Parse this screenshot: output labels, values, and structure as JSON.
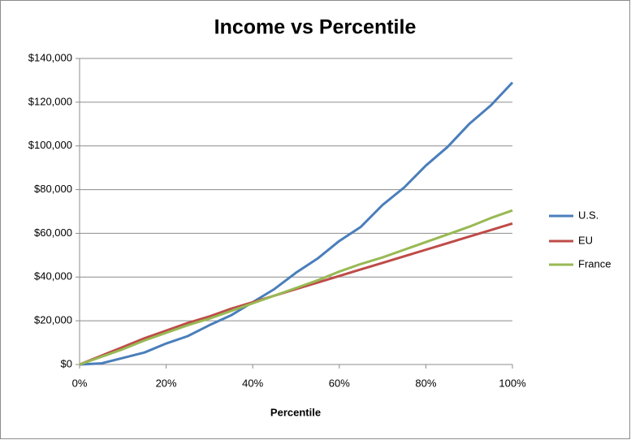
{
  "chart_data": {
    "type": "line",
    "title": "Income vs Percentile",
    "xlabel": "Percentile",
    "x": [
      0,
      5,
      10,
      15,
      20,
      25,
      30,
      35,
      40,
      45,
      50,
      55,
      60,
      65,
      70,
      75,
      80,
      85,
      90,
      95,
      100
    ],
    "series": [
      {
        "name": "U.S.",
        "color": "#4a7ebb",
        "values": [
          0,
          500,
          3000,
          5500,
          9600,
          13000,
          18000,
          22500,
          28500,
          34500,
          42000,
          48500,
          56500,
          63000,
          73000,
          81000,
          91000,
          99500,
          110000,
          118500,
          129000
        ]
      },
      {
        "name": "EU",
        "color": "#be4b48",
        "values": [
          0,
          4000,
          8000,
          12000,
          15500,
          19000,
          22000,
          25500,
          28500,
          31500,
          34500,
          37500,
          40500,
          43500,
          46500,
          49500,
          52500,
          55500,
          58500,
          61500,
          64500
        ]
      },
      {
        "name": "France",
        "color": "#98b954",
        "values": [
          0,
          3500,
          7000,
          11000,
          14500,
          18000,
          21000,
          24500,
          28000,
          31500,
          35000,
          38500,
          42500,
          46000,
          49000,
          52500,
          56000,
          59500,
          63000,
          67000,
          70500
        ]
      }
    ],
    "xlim": [
      0,
      100
    ],
    "xticks": [
      {
        "value": 0,
        "label": "0%"
      },
      {
        "value": 20,
        "label": "20%"
      },
      {
        "value": 40,
        "label": "40%"
      },
      {
        "value": 60,
        "label": "60%"
      },
      {
        "value": 80,
        "label": "80%"
      },
      {
        "value": 100,
        "label": "100%"
      }
    ],
    "ylim": [
      0,
      140000
    ],
    "yticks": [
      {
        "value": 0,
        "label": "$0"
      },
      {
        "value": 20000,
        "label": "$20,000"
      },
      {
        "value": 40000,
        "label": "$40,000"
      },
      {
        "value": 60000,
        "label": "$60,000"
      },
      {
        "value": 80000,
        "label": "$80,000"
      },
      {
        "value": 100000,
        "label": "$100,000"
      },
      {
        "value": 120000,
        "label": "$120,000"
      },
      {
        "value": 140000,
        "label": "$140,000"
      }
    ],
    "grid": true,
    "legend": "right"
  }
}
